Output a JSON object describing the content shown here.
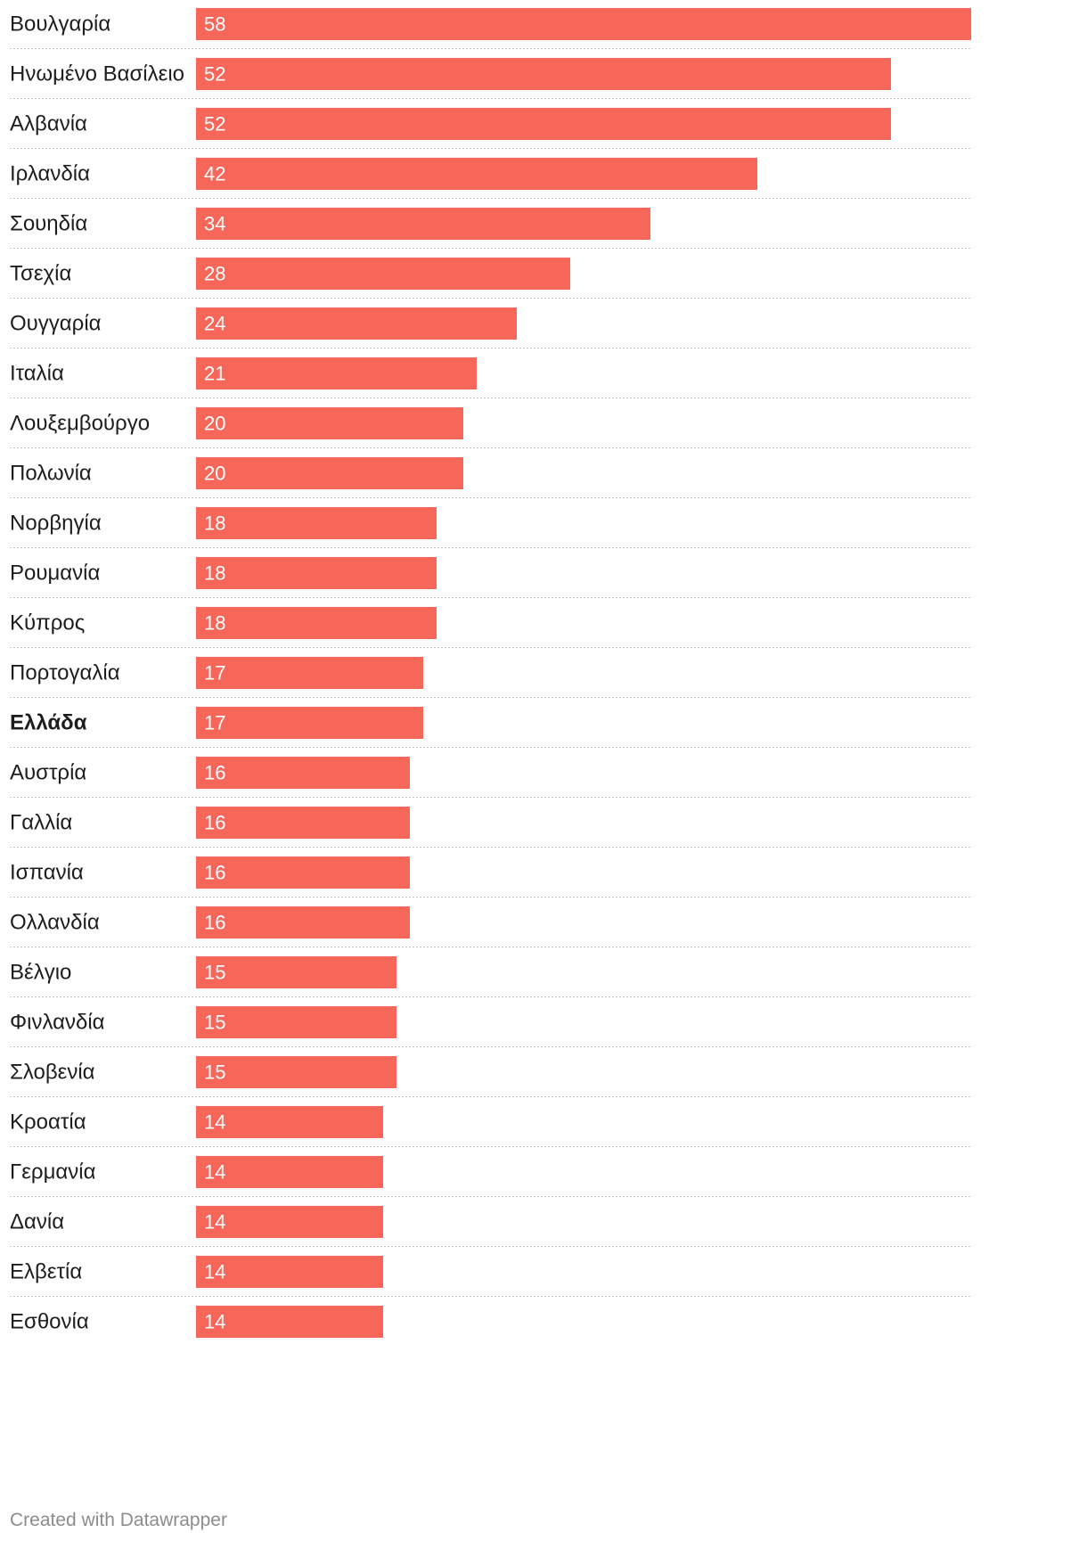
{
  "chart_data": {
    "type": "bar",
    "orientation": "horizontal",
    "title": "",
    "xlabel": "",
    "ylabel": "",
    "xlim": [
      0,
      58
    ],
    "bar_color": "#f6675a",
    "highlight_category": "Ελλάδα",
    "grid": false,
    "categories": [
      "Βουλγαρία",
      "Ηνωμένο Βασίλειο",
      "Αλβανία",
      "Ιρλανδία",
      "Σουηδία",
      "Τσεχία",
      "Ουγγαρία",
      "Ιταλία",
      "Λουξεμβούργο",
      "Πολωνία",
      "Νορβηγία",
      "Ρουμανία",
      "Κύπρος",
      "Πορτογαλία",
      "Ελλάδα",
      "Αυστρία",
      "Γαλλία",
      "Ισπανία",
      "Ολλανδία",
      "Βέλγιο",
      "Φινλανδία",
      "Σλοβενία",
      "Κροατία",
      "Γερμανία",
      "Δανία",
      "Ελβετία",
      "Εσθονία"
    ],
    "values": [
      58,
      52,
      52,
      42,
      34,
      28,
      24,
      21,
      20,
      20,
      18,
      18,
      18,
      17,
      17,
      16,
      16,
      16,
      16,
      15,
      15,
      15,
      14,
      14,
      14,
      14,
      14
    ]
  },
  "footer": {
    "credit": "Created with Datawrapper"
  }
}
